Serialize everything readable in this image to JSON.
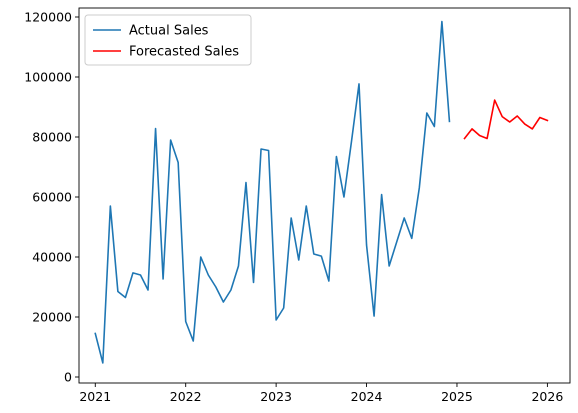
{
  "chart_data": {
    "type": "line",
    "title": "",
    "xlabel": "",
    "ylabel": "",
    "xlim": [
      2020.82,
      2026.25
    ],
    "ylim": [
      -2000,
      123000
    ],
    "x_ticks": [
      2021,
      2022,
      2023,
      2024,
      2025,
      2026
    ],
    "x_tick_labels": [
      "2021",
      "2022",
      "2023",
      "2024",
      "2025",
      "2026"
    ],
    "y_ticks": [
      0,
      20000,
      40000,
      60000,
      80000,
      100000,
      120000
    ],
    "y_tick_labels": [
      "0",
      "20000",
      "40000",
      "60000",
      "80000",
      "100000",
      "120000"
    ],
    "grid": false,
    "legend_position": "top-left",
    "series": [
      {
        "name": "Actual Sales",
        "color": "#1f77b4",
        "x": [
          "2021-01",
          "2021-02",
          "2021-03",
          "2021-04",
          "2021-05",
          "2021-06",
          "2021-07",
          "2021-08",
          "2021-09",
          "2021-10",
          "2021-11",
          "2021-12",
          "2022-01",
          "2022-02",
          "2022-03",
          "2022-04",
          "2022-05",
          "2022-06",
          "2022-07",
          "2022-08",
          "2022-09",
          "2022-10",
          "2022-11",
          "2022-12",
          "2023-01",
          "2023-02",
          "2023-03",
          "2023-04",
          "2023-05",
          "2023-06",
          "2023-07",
          "2023-08",
          "2023-09",
          "2023-10",
          "2023-11",
          "2023-12",
          "2024-01",
          "2024-02",
          "2024-03",
          "2024-04",
          "2024-05",
          "2024-06",
          "2024-07",
          "2024-08",
          "2024-09",
          "2024-10",
          "2024-11",
          "2024-12"
        ],
        "values": [
          14500,
          4700,
          57000,
          28500,
          26500,
          34700,
          34000,
          29000,
          82800,
          32700,
          79000,
          71500,
          18500,
          12000,
          40000,
          34000,
          30000,
          25000,
          29000,
          37000,
          64800,
          31500,
          76000,
          75500,
          19000,
          23000,
          53000,
          39000,
          57000,
          41000,
          40300,
          32000,
          73500,
          60000,
          78500,
          97700,
          44000,
          20300,
          60800,
          37000,
          45000,
          53000,
          46200,
          63000,
          88000,
          83500,
          118500,
          85200
        ]
      },
      {
        "name": "Forecasted Sales",
        "color": "#ff0000",
        "x": [
          "2025-02",
          "2025-03",
          "2025-04",
          "2025-05",
          "2025-06",
          "2025-07",
          "2025-08",
          "2025-09",
          "2025-10",
          "2025-11",
          "2025-12",
          "2026-01"
        ],
        "values": [
          79500,
          82700,
          80500,
          79500,
          92300,
          86800,
          85000,
          87000,
          84300,
          82700,
          86500,
          85500
        ]
      }
    ]
  }
}
